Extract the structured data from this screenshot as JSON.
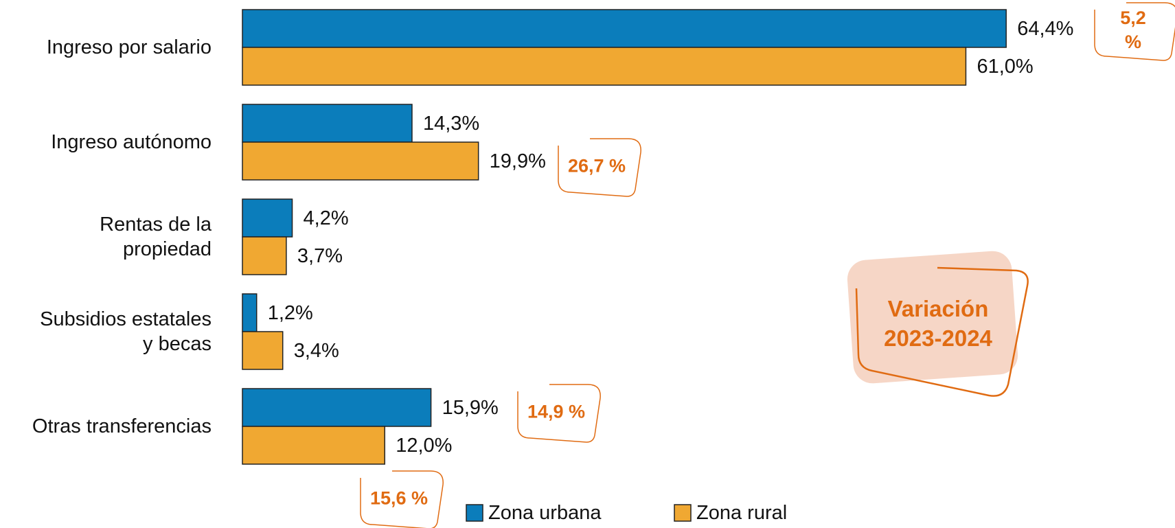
{
  "chart_data": {
    "type": "bar",
    "orientation": "horizontal",
    "categories": [
      "Ingreso por salario",
      "Ingreso autónomo",
      "Rentas de la\npropiedad",
      "Subsidios estatales\ny becas",
      "Otras transferencias"
    ],
    "series": [
      {
        "name": "Zona urbana",
        "color": "#0b7dbb",
        "values": [
          64.4,
          14.3,
          4.2,
          1.2,
          15.9
        ],
        "value_labels": [
          "64,4%",
          "14,3%",
          "4,2%",
          "1,2%",
          "15,9%"
        ]
      },
      {
        "name": "Zona rural",
        "color": "#f0a832",
        "values": [
          61.0,
          19.9,
          3.7,
          3.4,
          12.0
        ],
        "value_labels": [
          "61,0%",
          "19,9%",
          "3,7%",
          "3,4%",
          "12,0%"
        ]
      }
    ],
    "annotations": [
      "5,2 %",
      "26,7 %",
      "14,9 %",
      "15,6 %"
    ],
    "annotation_title": "Variación\n2023-2024",
    "legend": "bottom"
  }
}
